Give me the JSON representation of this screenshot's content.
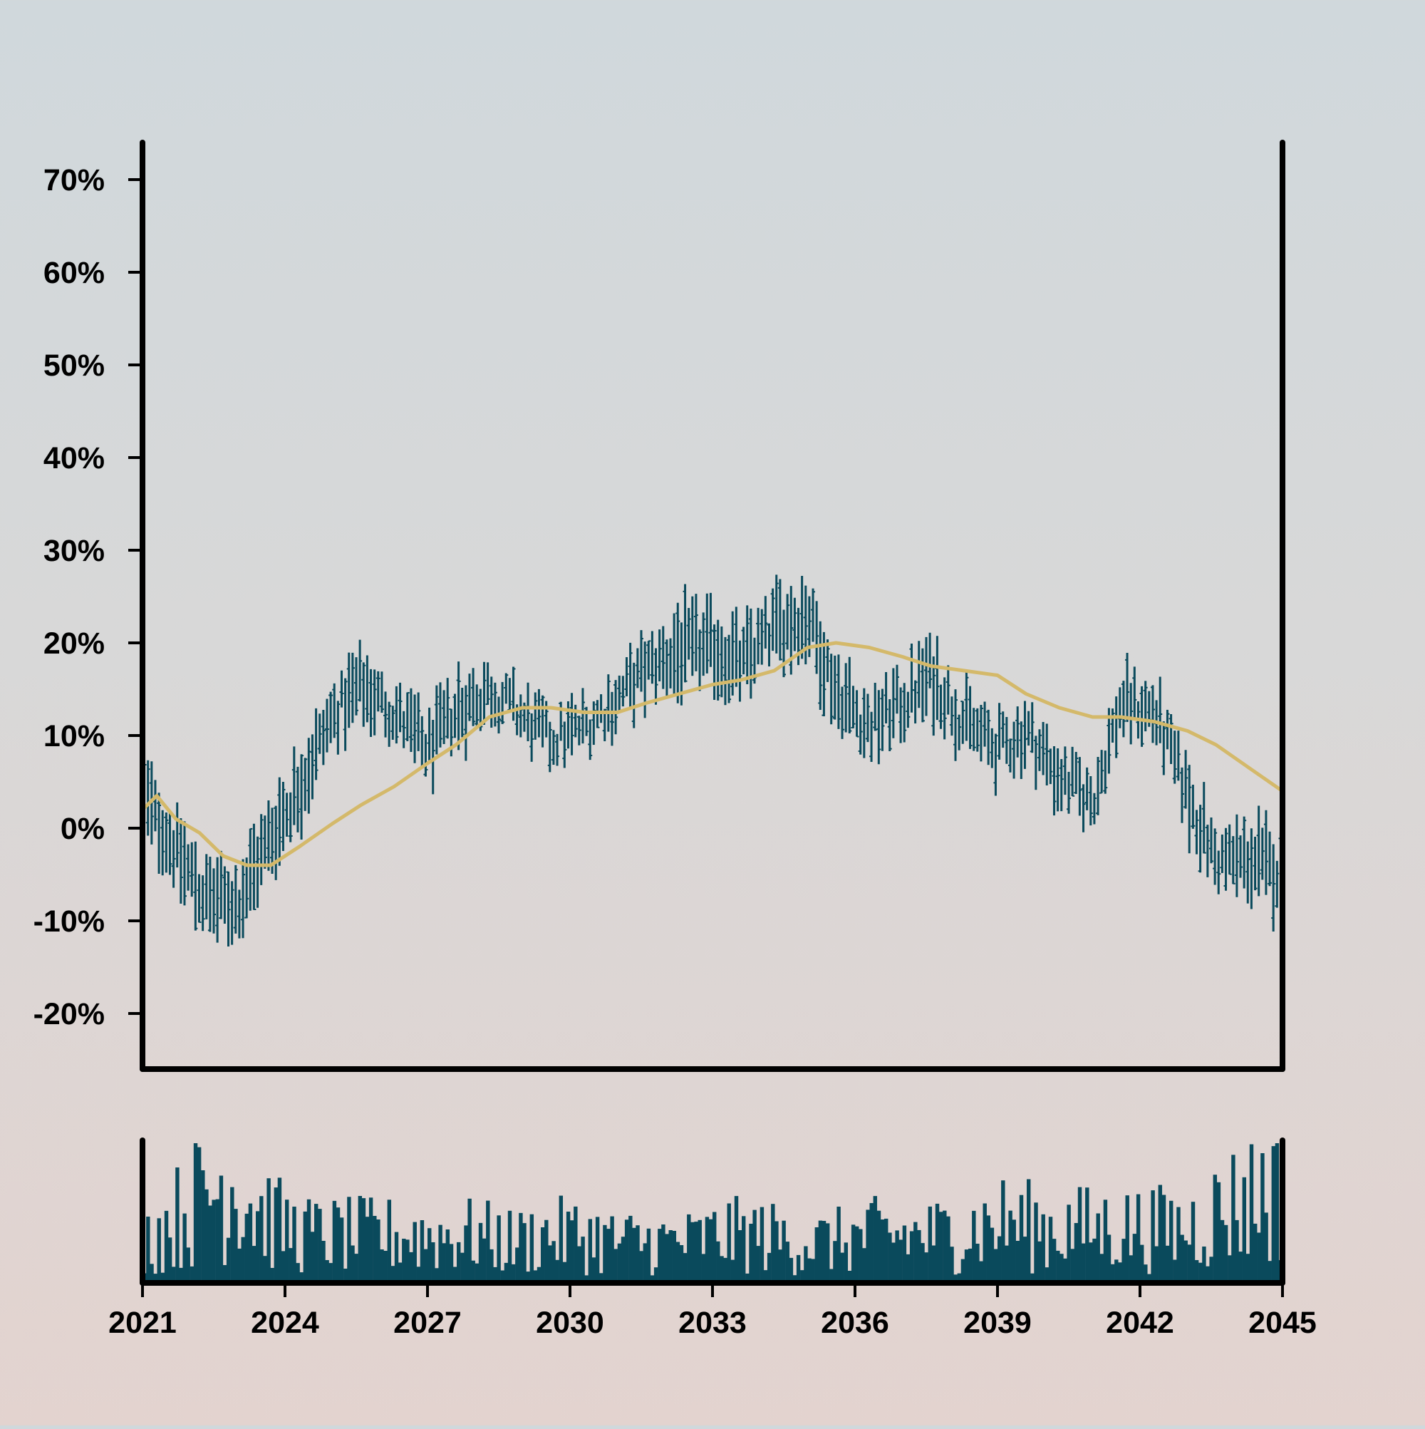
{
  "chart_data": {
    "type": "ohlc",
    "title": "",
    "xlabel": "",
    "ylabel": "",
    "x_tick_labels": [
      "2021",
      "2024",
      "2027",
      "2030",
      "2033",
      "2036",
      "2039",
      "2042",
      "2045"
    ],
    "x_tick_values": [
      2021,
      2024,
      2027,
      2030,
      2033,
      2036,
      2039,
      2042,
      2045
    ],
    "y_tick_labels": [
      "-20%",
      "-10%",
      "0%",
      "10%",
      "20%",
      "30%",
      "40%",
      "50%",
      "60%",
      "70%"
    ],
    "y_tick_values": [
      -20,
      -10,
      0,
      10,
      20,
      30,
      40,
      50,
      60,
      70
    ],
    "xlim": [
      2021,
      2045
    ],
    "ylim": [
      -26,
      74
    ],
    "grid": false,
    "colors": {
      "bars": "#0a4a5c",
      "moving_average": "#d4b96a",
      "volume": "#0a4a5c",
      "axes": "#000000"
    },
    "range_anchors": {
      "x": [
        2021.0,
        2021.6,
        2022.3,
        2023.0,
        2023.6,
        2024.3,
        2025.0,
        2025.6,
        2026.3,
        2027.0,
        2027.6,
        2028.3,
        2029.0,
        2029.6,
        2030.3,
        2031.0,
        2031.6,
        2032.3,
        2033.0,
        2033.6,
        2034.3,
        2035.0,
        2035.6,
        2036.3,
        2037.0,
        2037.6,
        2038.3,
        2039.0,
        2039.6,
        2040.3,
        2041.0,
        2041.6,
        2042.3,
        2043.0,
        2043.6,
        2044.3,
        2045.0
      ],
      "high": [
        8,
        3,
        -3,
        -4,
        3,
        9,
        16,
        19,
        16,
        12,
        17,
        18,
        15,
        13,
        14,
        17,
        21,
        24,
        24,
        22,
        26,
        28,
        19,
        15,
        17,
        21,
        15,
        12,
        14,
        9,
        6,
        17,
        16,
        8,
        0,
        1,
        0
      ],
      "low": [
        -1,
        -6,
        -12,
        -12,
        -7,
        0,
        8,
        12,
        9,
        5,
        8,
        12,
        9,
        6,
        8,
        11,
        13,
        14,
        15,
        13,
        17,
        18,
        11,
        7,
        10,
        12,
        8,
        5,
        7,
        2,
        0,
        10,
        9,
        -1,
        -7,
        -8,
        -10
      ]
    },
    "moving_average": {
      "x": [
        2021.0,
        2021.3,
        2021.7,
        2022.2,
        2022.7,
        2023.2,
        2023.7,
        2024.3,
        2025.0,
        2025.6,
        2026.3,
        2027.0,
        2027.6,
        2028.3,
        2029.0,
        2029.6,
        2030.3,
        2031.0,
        2031.6,
        2032.3,
        2033.0,
        2033.6,
        2034.3,
        2035.0,
        2035.6,
        2036.3,
        2037.0,
        2037.6,
        2038.3,
        2039.0,
        2039.6,
        2040.3,
        2041.0,
        2041.6,
        2042.3,
        2043.0,
        2043.6,
        2044.3,
        2045.0
      ],
      "y": [
        2,
        3.5,
        1,
        -0.5,
        -3,
        -4,
        -4,
        -2,
        0.5,
        2.5,
        4.5,
        7,
        9,
        12,
        13,
        13,
        12.5,
        12.5,
        13.5,
        14.5,
        15.5,
        16,
        17,
        19.5,
        20,
        19.5,
        18.5,
        17.5,
        17,
        16.5,
        14.5,
        13,
        12,
        12,
        11.5,
        10.5,
        9,
        6.5,
        4
      ]
    },
    "volume": {
      "scale": [
        0,
        1
      ],
      "anchors_x": [
        2021.0,
        2021.6,
        2022.3,
        2022.9,
        2023.4,
        2024.0,
        2024.6,
        2025.2,
        2025.8,
        2026.5,
        2027.2,
        2028.0,
        2028.8,
        2029.5,
        2030.3,
        2031.0,
        2031.8,
        2032.5,
        2033.2,
        2034.0,
        2034.8,
        2035.5,
        2036.3,
        2037.0,
        2037.8,
        2038.5,
        2039.2,
        2040.0,
        2040.8,
        2041.5,
        2042.3,
        2043.0,
        2043.8,
        2044.5,
        2045.0
      ],
      "anchors_level": [
        0.3,
        0.45,
        0.65,
        0.75,
        0.55,
        0.4,
        0.35,
        0.35,
        0.35,
        0.35,
        0.35,
        0.35,
        0.3,
        0.35,
        0.35,
        0.3,
        0.3,
        0.3,
        0.35,
        0.35,
        0.3,
        0.3,
        0.35,
        0.35,
        0.35,
        0.4,
        0.45,
        0.4,
        0.4,
        0.4,
        0.4,
        0.4,
        0.55,
        0.65,
        0.75
      ]
    }
  }
}
